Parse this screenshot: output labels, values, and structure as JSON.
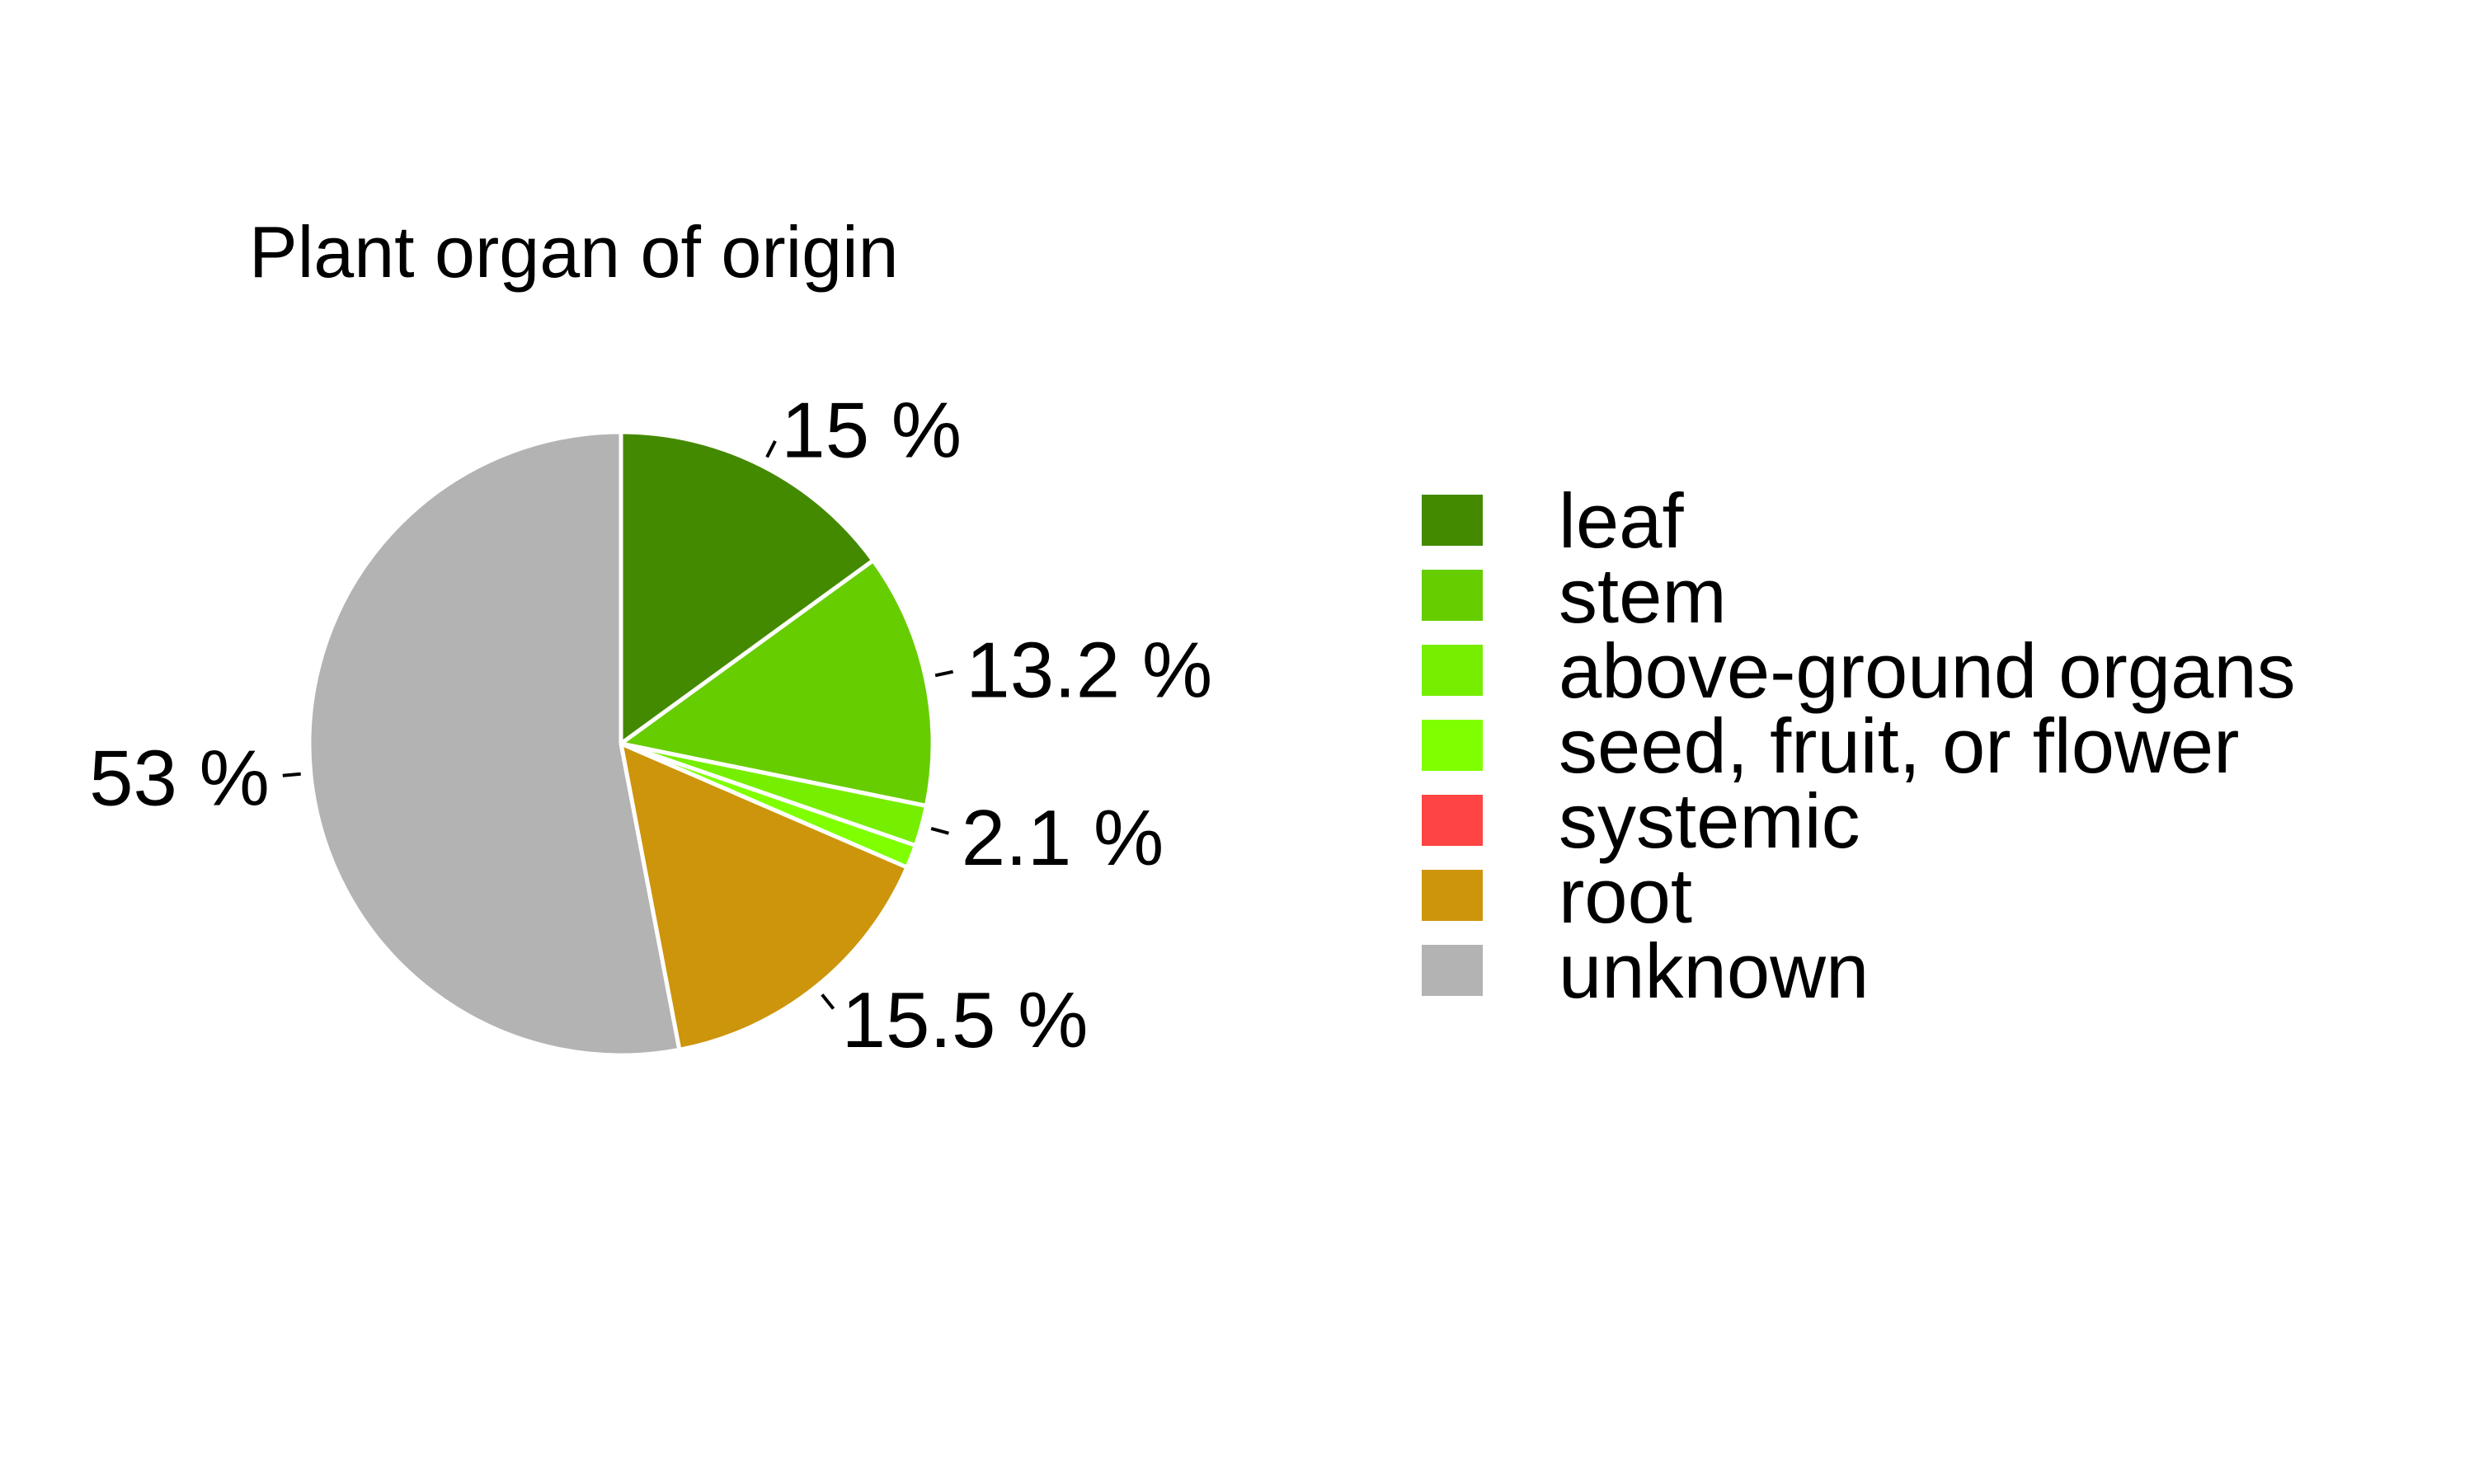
{
  "chart_data": {
    "type": "pie",
    "title": "Plant organ of origin",
    "slices": [
      {
        "label": "leaf",
        "value": 15.0,
        "color": "#448a00",
        "data_label": "15 %"
      },
      {
        "label": "stem",
        "value": 13.2,
        "color": "#66cd00",
        "data_label": "13.2 %"
      },
      {
        "label": "above-ground organs",
        "value": 2.1,
        "color": "#76ee00",
        "data_label": "2.1 %"
      },
      {
        "label": "seed, fruit, or flower",
        "value": 1.2,
        "color": "#7fff00",
        "data_label": ""
      },
      {
        "label": "systemic",
        "value": 0.0,
        "color": "#ff4444",
        "data_label": ""
      },
      {
        "label": "root",
        "value": 15.5,
        "color": "#cd950c",
        "data_label": "15.5 %"
      },
      {
        "label": "unknown",
        "value": 53.0,
        "color": "#b3b3b3",
        "data_label": "53 %"
      }
    ],
    "start_angle": "12 o'clock",
    "direction": "clockwise",
    "legend_position": "right"
  }
}
